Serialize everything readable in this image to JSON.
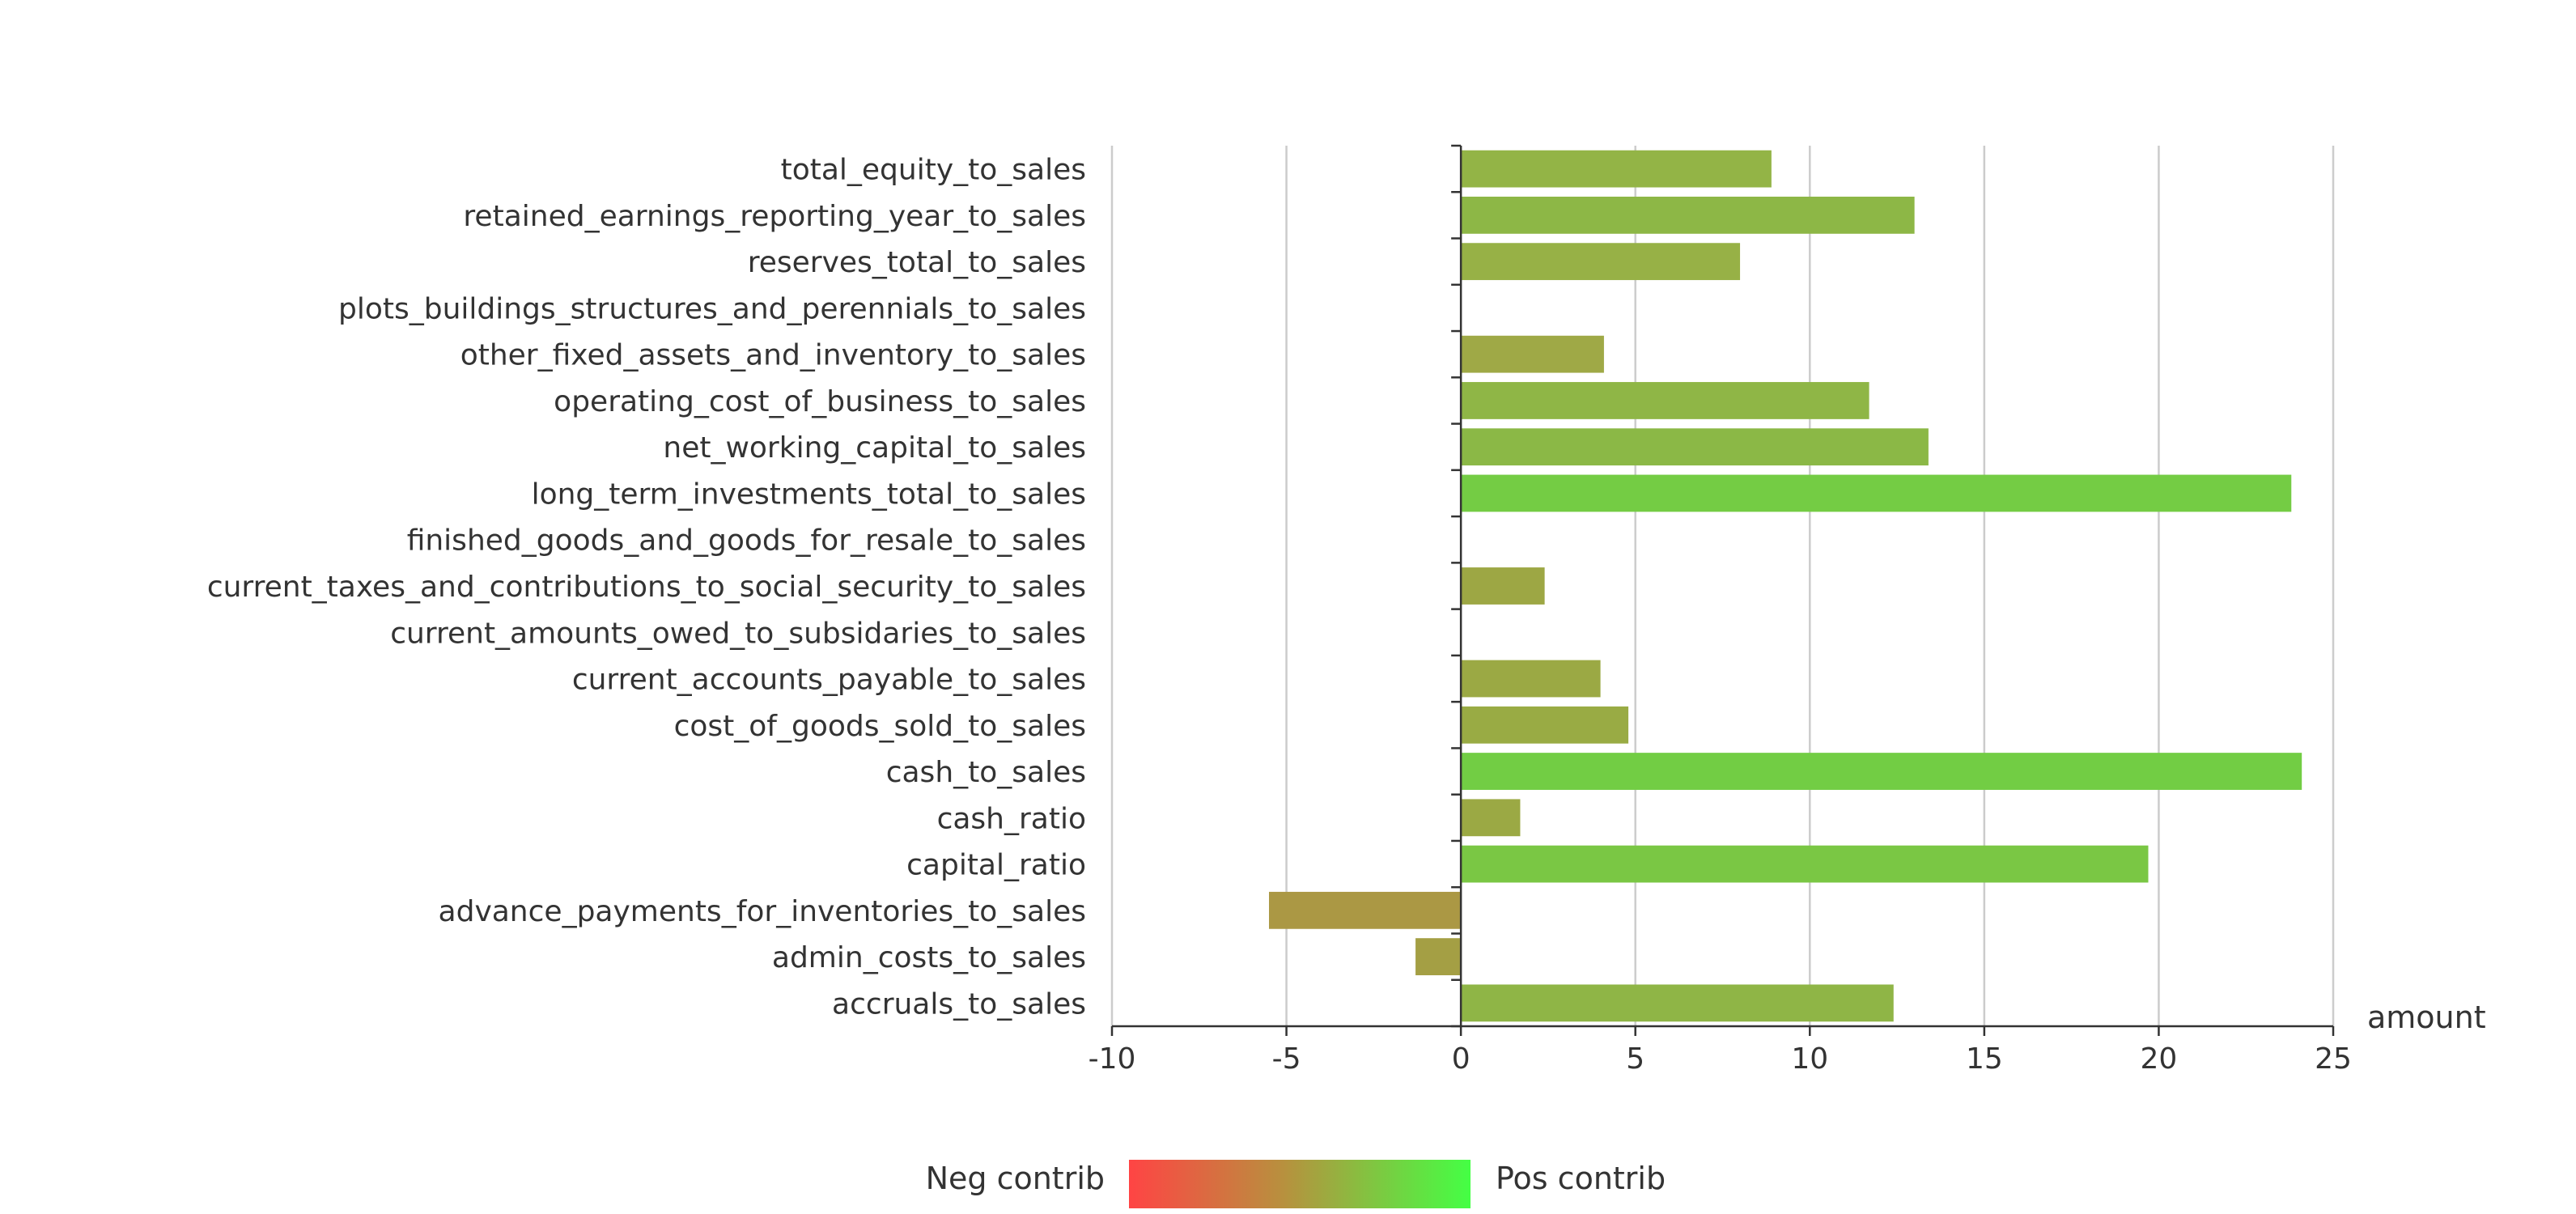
{
  "chart_data": {
    "type": "bar",
    "orientation": "horizontal",
    "categories": [
      "total_equity_to_sales",
      "retained_earnings_reporting_year_to_sales",
      "reserves_total_to_sales",
      "plots_buildings_structures_and_perennials_to_sales",
      "other_fixed_assets_and_inventory_to_sales",
      "operating_cost_of_business_to_sales",
      "net_working_capital_to_sales",
      "long_term_investments_total_to_sales",
      "finished_goods_and_goods_for_resale_to_sales",
      "current_taxes_and_contributions_to_social_security_to_sales",
      "current_amounts_owed_to_subsidaries_to_sales",
      "current_accounts_payable_to_sales",
      "cost_of_goods_sold_to_sales",
      "cash_to_sales",
      "cash_ratio",
      "capital_ratio",
      "advance_payments_for_inventories_to_sales",
      "admin_costs_to_sales",
      "accruals_to_sales"
    ],
    "values": [
      8.9,
      13.0,
      8.0,
      0,
      4.1,
      11.7,
      13.4,
      23.8,
      0,
      2.4,
      0,
      4.0,
      4.8,
      24.1,
      1.7,
      19.7,
      -5.5,
      -1.3,
      12.4
    ],
    "colors": [
      "#93b446",
      "#8db746",
      "#97b146",
      "#9fab46",
      "#9fa946",
      "#8fb646",
      "#8bb846",
      "#74cc44",
      "#9fab46",
      "#9da744",
      "#9fab46",
      "#9ba944",
      "#99ab44",
      "#72cd44",
      "#9ba944",
      "#7ac744",
      "#ab9844",
      "#a49f44",
      "#8fb546"
    ],
    "xlabel": "amount",
    "xlim": [
      -10,
      25
    ],
    "xticks": [
      -10,
      -5,
      0,
      5,
      10,
      15,
      20,
      25
    ],
    "grid": "vertical",
    "legend": {
      "position": "bottom-center",
      "neg_label": "Neg contrib",
      "pos_label": "Pos contrib",
      "gradient": [
        "#ff4444",
        "#b8903e",
        "#44ff44"
      ]
    }
  }
}
